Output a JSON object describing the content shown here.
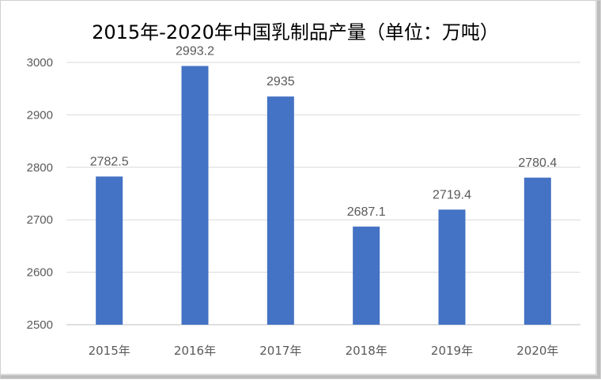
{
  "chart_data": {
    "type": "bar",
    "title": "2015年-2020年中国乳制品产量（单位：万吨）",
    "categories": [
      "2015年",
      "2016年",
      "2017年",
      "2018年",
      "2019年",
      "2020年"
    ],
    "values": [
      2782.5,
      2993.2,
      2935,
      2687.1,
      2719.4,
      2780.4
    ],
    "data_labels": [
      "2782.5",
      "2993.2",
      "2935",
      "2687.1",
      "2719.4",
      "2780.4"
    ],
    "xlabel": "",
    "ylabel": "",
    "ylim": [
      2500,
      3000
    ],
    "yticks": [
      "2500",
      "2600",
      "2700",
      "2800",
      "2900",
      "3000"
    ],
    "grid": true,
    "legend": "none",
    "bar_color": "#4472C4",
    "grid_color": "#d9d9d9"
  }
}
